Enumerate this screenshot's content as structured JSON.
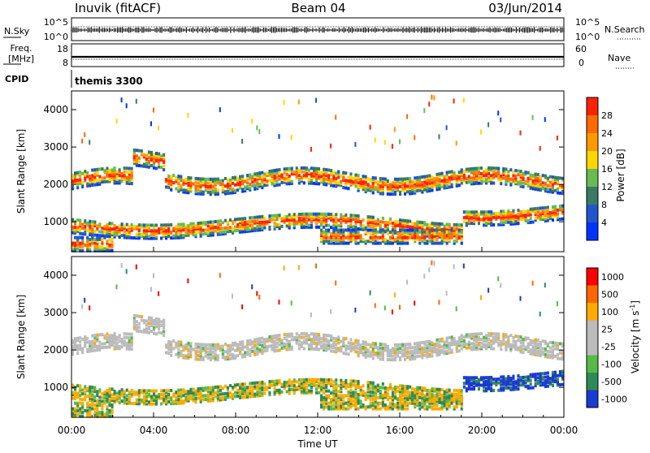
{
  "header": {
    "radar": "Inuvik (fitACF)",
    "beam": "Beam 04",
    "date": "03/Jun/2014"
  },
  "noise_panel": {
    "left_label": "N.Sky",
    "left_top_tick": "10^5",
    "left_bottom_tick": "10^0",
    "right_top_tick": "10^5",
    "right_bottom_tick": "10^0",
    "right_label": "N.Search"
  },
  "freq_panel": {
    "left_label_line1": "Freq.",
    "left_label_line2": "[MHz]",
    "left_top_tick": "18",
    "left_bottom_tick": "8",
    "right_top_tick": "60",
    "right_bottom_tick": "0",
    "right_label": "Nave"
  },
  "cpid": {
    "label": "CPID",
    "value": "themis 3300"
  },
  "chart_data": [
    {
      "type": "heatmap",
      "name": "power",
      "ylabel": "Slant Range [km]",
      "yticks": [
        "1000",
        "2000",
        "3000",
        "4000"
      ],
      "ylim": [
        200,
        4500
      ],
      "xlim_hours": [
        0,
        24
      ],
      "colorbar_label": "Power [dB]",
      "colorbar_ticks": [
        "4",
        "8",
        "12",
        "16",
        "20",
        "24",
        "28"
      ],
      "colors": [
        "#0033ff",
        "#2255cc",
        "#3a7a64",
        "#66bb55",
        "#ffd700",
        "#ff9900",
        "#ff6a00",
        "#ff2200"
      ]
    },
    {
      "type": "heatmap",
      "name": "velocity",
      "ylabel": "Slant Range [km]",
      "yticks": [
        "1000",
        "2000",
        "3000",
        "4000"
      ],
      "ylim": [
        200,
        4500
      ],
      "xlim_hours": [
        0,
        24
      ],
      "colorbar_label": "Velocity [m s",
      "colorbar_label_sup": "-1",
      "colorbar_label_end": "]",
      "colorbar_ticks": [
        "1000",
        "500",
        "100",
        "25",
        "-25",
        "-100",
        "-500",
        "-1000"
      ],
      "colors": [
        "#1a3bd1",
        "#2e8b57",
        "#55bb44",
        "#bbbbbb",
        "#bbbbbb",
        "#ffaa00",
        "#ff6600",
        "#ff0000"
      ]
    }
  ],
  "x_axis": {
    "ticks": [
      "00:00",
      "04:00",
      "08:00",
      "12:00",
      "16:00",
      "20:00",
      "00:00"
    ],
    "label": "Time UT"
  }
}
